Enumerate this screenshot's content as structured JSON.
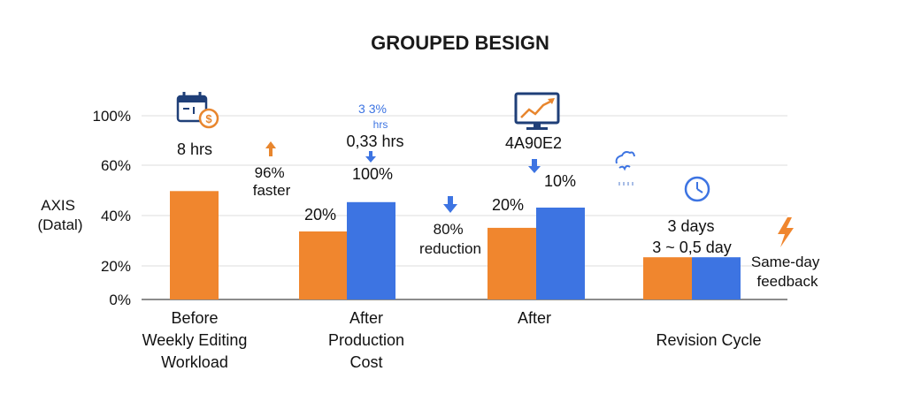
{
  "chart_data": {
    "type": "bar",
    "title": "GROUPED BESIGN",
    "ylabel_lines": [
      "AXIS",
      "(Datal)"
    ],
    "y_ticks": [
      {
        "label": "100%",
        "value": 100
      },
      {
        "label": "60%",
        "value": 60
      },
      {
        "label": "40%",
        "value": 40
      },
      {
        "label": "20%",
        "value": 20
      },
      {
        "label": "0%",
        "value": 0
      }
    ],
    "categories": [
      {
        "lines": [
          "Before",
          "Weekly Editing",
          "Workload"
        ]
      },
      {
        "lines": [
          "After",
          "Production",
          "Cost"
        ]
      },
      {
        "lines": [
          "After"
        ]
      },
      {
        "lines": [
          "Revision Cycle"
        ]
      }
    ],
    "series": [
      {
        "color": "#f0862e",
        "values": [
          59,
          37,
          39,
          23
        ]
      },
      {
        "color": "#3d74e2",
        "values": [
          null,
          53,
          50,
          23
        ]
      }
    ],
    "bar_labels": [
      "8 hrs",
      "20%",
      "100%",
      "20%",
      "10%",
      "3 days",
      "3 ~ 0,5 day"
    ],
    "annotations": {
      "faster": [
        "96%",
        "faster"
      ],
      "small_top": "3 3%",
      "small_bottom": "hrs",
      "hrs_value": "0,33 hrs",
      "reduction": [
        "80%",
        "reduction"
      ],
      "hex_label": "4A90E2",
      "same_day": [
        "Same-day",
        "feedback"
      ]
    },
    "icons": [
      "calendar-dollar-icon",
      "monitor-chart-icon",
      "cloud-sketch-icon",
      "clock-icon",
      "lightning-icon"
    ],
    "colors": {
      "orange": "#f0862e",
      "blue": "#3d74e2",
      "gridline": "#dddddd",
      "axis": "#666666"
    }
  }
}
